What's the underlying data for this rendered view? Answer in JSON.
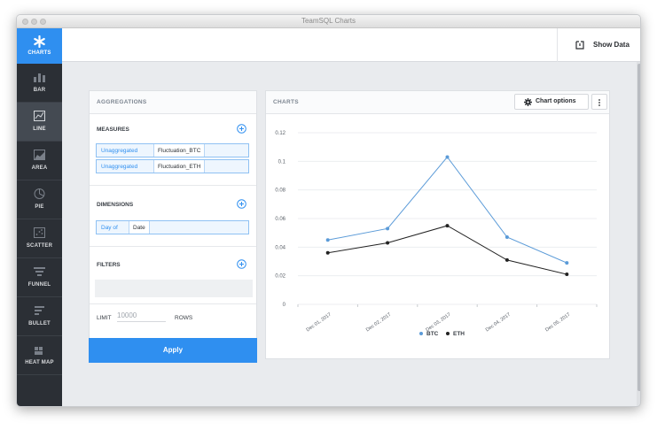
{
  "window": {
    "title": "TeamSQL Charts"
  },
  "sidebar": {
    "items": [
      {
        "label": "CHARTS",
        "icon": "asterisk-icon"
      },
      {
        "label": "BAR",
        "icon": "bar-chart-icon"
      },
      {
        "label": "LINE",
        "icon": "line-chart-icon"
      },
      {
        "label": "AREA",
        "icon": "area-chart-icon"
      },
      {
        "label": "PIE",
        "icon": "pie-chart-icon"
      },
      {
        "label": "SCATTER",
        "icon": "scatter-chart-icon"
      },
      {
        "label": "FUNNEL",
        "icon": "funnel-chart-icon"
      },
      {
        "label": "BULLET",
        "icon": "bullet-chart-icon"
      },
      {
        "label": "HEAT MAP",
        "icon": "heat-map-icon"
      }
    ],
    "active": "LINE"
  },
  "topbar": {
    "show_data_label": "Show Data"
  },
  "aggregations": {
    "title": "AGGREGATIONS",
    "measures": {
      "label": "MEASURES",
      "items": [
        {
          "agg": "Unaggregated",
          "field": "Fluctuation_BTC"
        },
        {
          "agg": "Unaggregated",
          "field": "Fluctuation_ETH"
        }
      ]
    },
    "dimensions": {
      "label": "DIMENSIONS",
      "items": [
        {
          "agg": "Day of",
          "field": "Date"
        }
      ]
    },
    "filters": {
      "label": "FILTERS"
    },
    "limit": {
      "label": "LIMIT",
      "placeholder": "10000",
      "unit": "ROWS"
    },
    "apply_label": "Apply"
  },
  "charts_panel": {
    "title": "CHARTS",
    "options_label": "Chart options"
  },
  "colors": {
    "accent": "#2f8ff0",
    "btc": "#5b9bd8",
    "eth": "#222222",
    "sidebar": "#2b2f35"
  },
  "chart_data": {
    "type": "line",
    "categories": [
      "Dec 01, 2017",
      "Dec 02, 2017",
      "Dec 03, 2017",
      "Dec 04, 2017",
      "Dec 05, 2017"
    ],
    "series": [
      {
        "name": "BTC",
        "values": [
          0.045,
          0.053,
          0.103,
          0.047,
          0.029
        ]
      },
      {
        "name": "ETH",
        "values": [
          0.036,
          0.043,
          0.055,
          0.031,
          0.021
        ]
      }
    ],
    "y_ticks": [
      "0.12",
      "0.1",
      "0.08",
      "0.06",
      "0.04",
      "0.02",
      "0"
    ],
    "ylim": [
      0,
      0.12
    ],
    "grid": true,
    "legend": "bottom-center"
  }
}
